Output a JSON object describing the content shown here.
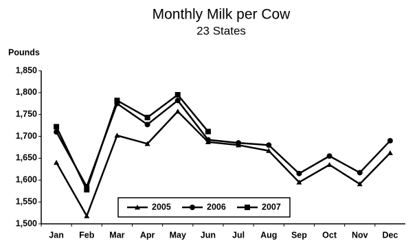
{
  "chart_data": {
    "type": "line",
    "title": "Monthly Milk per Cow",
    "subtitle": "23  States",
    "y_label": "Pounds",
    "categories": [
      "Jan",
      "Feb",
      "Mar",
      "Apr",
      "May",
      "Jun",
      "Jul",
      "Aug",
      "Sep",
      "Oct",
      "Nov",
      "Dec"
    ],
    "series": [
      {
        "name": "2005",
        "color": "#000000",
        "marker": "triangle",
        "values": [
          1640,
          1518,
          1702,
          1683,
          1757,
          1687,
          1680,
          1667,
          1595,
          1635,
          1591,
          1662
        ]
      },
      {
        "name": "2006",
        "color": "#000000",
        "marker": "circle",
        "values": [
          1710,
          1585,
          1775,
          1727,
          1782,
          1692,
          1685,
          1680,
          1615,
          1655,
          1617,
          1690
        ]
      },
      {
        "name": "2007",
        "color": "#000000",
        "marker": "square",
        "values": [
          1722,
          1578,
          1782,
          1743,
          1795,
          1711,
          null,
          null,
          null,
          null,
          null,
          null
        ]
      }
    ],
    "ylim": [
      1500,
      1850
    ],
    "yticks": [
      {
        "value": 1500,
        "label": "1,500"
      },
      {
        "value": 1550,
        "label": "1,550"
      },
      {
        "value": 1600,
        "label": "1,600"
      },
      {
        "value": 1650,
        "label": "1,650"
      },
      {
        "value": 1700,
        "label": "1,700"
      },
      {
        "value": 1750,
        "label": "1,750"
      },
      {
        "value": 1800,
        "label": "1,800"
      },
      {
        "value": 1850,
        "label": "1,850"
      }
    ],
    "grid": false,
    "legend": "bottom-center"
  }
}
